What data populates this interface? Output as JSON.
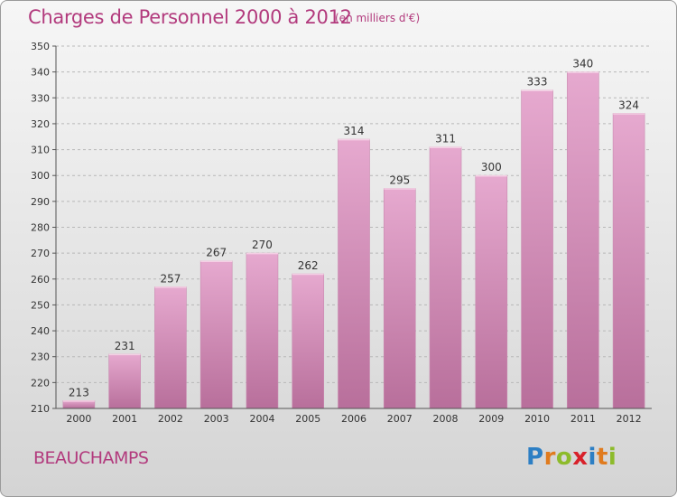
{
  "header": {
    "title": "Charges de Personnel 2000 à 2012",
    "subtitle": "(en milliers d'€)"
  },
  "footer": {
    "commune": "BEAUCHAMPS",
    "logo": [
      "P",
      "r",
      "o",
      "x",
      "i",
      "t",
      "i"
    ],
    "logo_colors": [
      "#2d7fc4",
      "#e07b1e",
      "#8dbb2b",
      "#d8212a",
      "#2d7fc4",
      "#e07b1e",
      "#8dbb2b"
    ]
  },
  "colors": {
    "bar_top": "#e6a9cf",
    "bar_bottom": "#b86f9b",
    "accent": "#b23a7d"
  },
  "chart_data": {
    "type": "bar",
    "categories": [
      "2000",
      "2001",
      "2002",
      "2003",
      "2004",
      "2005",
      "2006",
      "2007",
      "2008",
      "2009",
      "2010",
      "2011",
      "2012"
    ],
    "values": [
      213,
      231,
      257,
      267,
      270,
      262,
      314,
      295,
      311,
      300,
      333,
      340,
      324
    ],
    "ylim": [
      210,
      350
    ],
    "yticks": [
      210,
      220,
      230,
      240,
      250,
      260,
      270,
      280,
      290,
      300,
      310,
      320,
      330,
      340,
      350
    ],
    "grid": true
  }
}
